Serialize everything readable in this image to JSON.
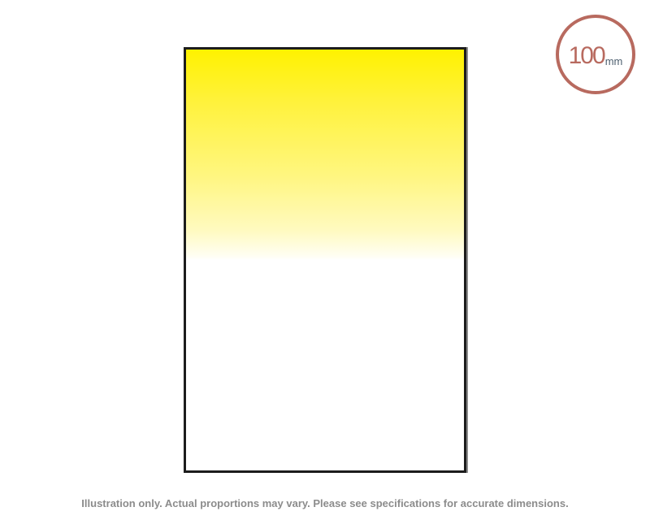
{
  "filter": {
    "type": "graduated",
    "gradient_colors": [
      "#fff200",
      "#ffffff"
    ],
    "border_color": "#1c1c1c"
  },
  "size_badge": {
    "number": "100",
    "unit": "mm",
    "color": "#b86a5f"
  },
  "disclaimer": "Illustration only. Actual proportions may vary. Please see specifications for accurate dimensions."
}
